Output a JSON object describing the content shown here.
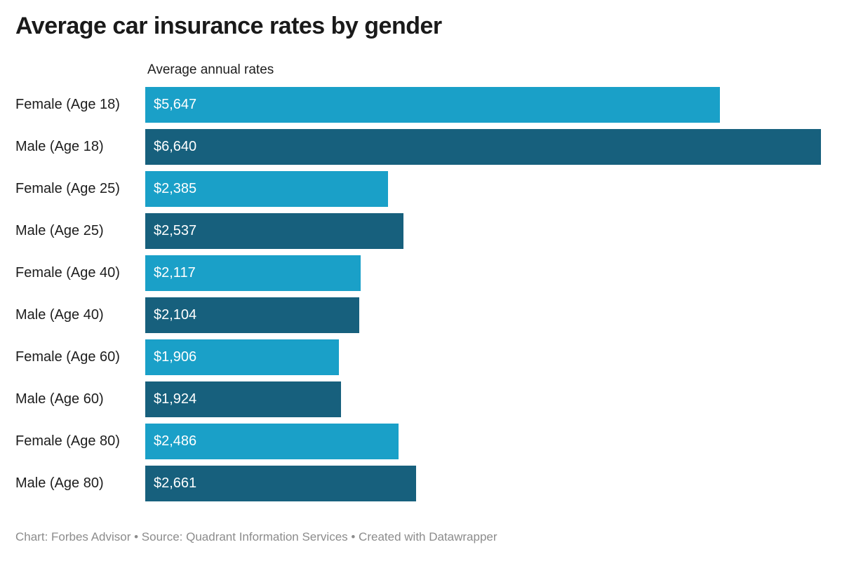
{
  "title": "Average car insurance rates by gender",
  "axis_header": "Average annual rates",
  "footer": "Chart: Forbes Advisor • Source: Quadrant Information Services • Created with Datawrapper",
  "chart_data": {
    "type": "bar",
    "orientation": "horizontal",
    "title": "Average car insurance rates by gender",
    "xlabel": "Average annual rates",
    "xlim": [
      0,
      6640
    ],
    "grid": false,
    "legend": "none",
    "categories": [
      "Female (Age 18)",
      "Male (Age 18)",
      "Female (Age 25)",
      "Male (Age 25)",
      "Female (Age 40)",
      "Male (Age 40)",
      "Female (Age 60)",
      "Male (Age 60)",
      "Female (Age 80)",
      "Male (Age 80)"
    ],
    "values": [
      5647,
      6640,
      2385,
      2537,
      2117,
      2104,
      1906,
      1924,
      2486,
      2661
    ],
    "colors": {
      "female": "#1aa0c8",
      "male": "#17607d"
    },
    "rows": [
      {
        "label": "Female (Age 18)",
        "value": 5647,
        "display": "$5,647",
        "color_key": "female"
      },
      {
        "label": "Male (Age 18)",
        "value": 6640,
        "display": "$6,640",
        "color_key": "male"
      },
      {
        "label": "Female (Age 25)",
        "value": 2385,
        "display": "$2,385",
        "color_key": "female"
      },
      {
        "label": "Male (Age 25)",
        "value": 2537,
        "display": "$2,537",
        "color_key": "male"
      },
      {
        "label": "Female (Age 40)",
        "value": 2117,
        "display": "$2,117",
        "color_key": "female"
      },
      {
        "label": "Male (Age 40)",
        "value": 2104,
        "display": "$2,104",
        "color_key": "male"
      },
      {
        "label": "Female (Age 60)",
        "value": 1906,
        "display": "$1,906",
        "color_key": "female"
      },
      {
        "label": "Male (Age 60)",
        "value": 1924,
        "display": "$1,924",
        "color_key": "male"
      },
      {
        "label": "Female (Age 80)",
        "value": 2486,
        "display": "$2,486",
        "color_key": "female"
      },
      {
        "label": "Male (Age 80)",
        "value": 2661,
        "display": "$2,661",
        "color_key": "male"
      }
    ]
  }
}
